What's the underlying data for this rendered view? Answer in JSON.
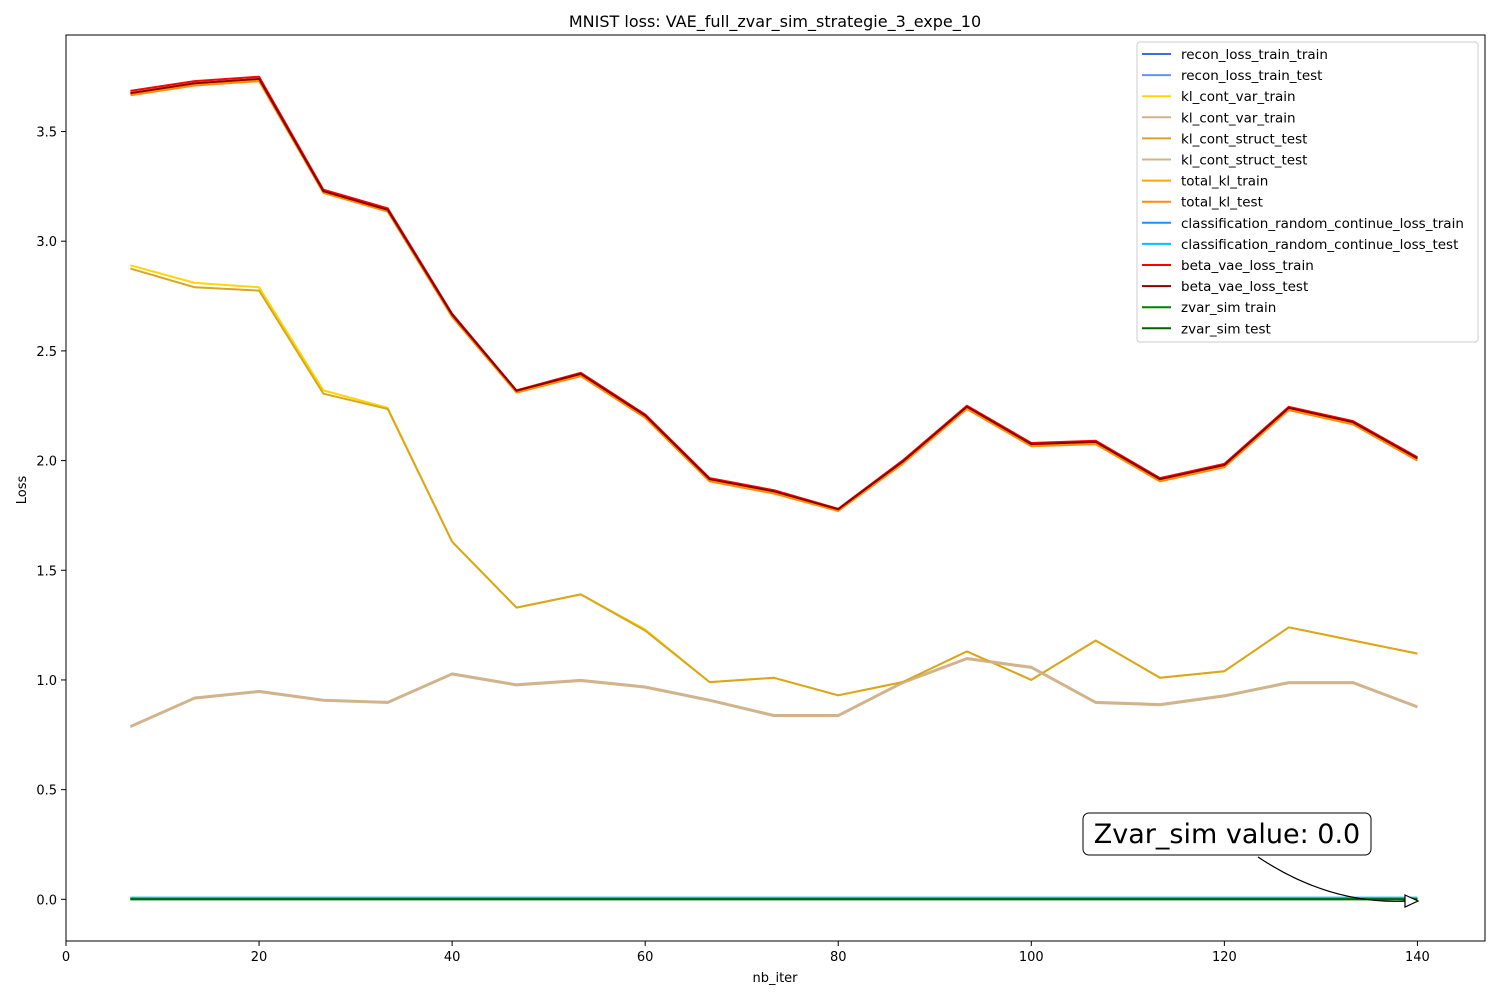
{
  "chart_data": {
    "type": "line",
    "title": "MNIST loss: VAE_full_zvar_sim_strategie_3_expe_10",
    "xlabel": "nb_iter",
    "ylabel": "Loss",
    "xlim": [
      0,
      147
    ],
    "ylim": [
      -0.19,
      3.94
    ],
    "xticks": [
      "0",
      "20",
      "40",
      "60",
      "80",
      "100",
      "120",
      "140"
    ],
    "yticks": [
      "0.0",
      "0.5",
      "1.0",
      "1.5",
      "2.0",
      "2.5",
      "3.0",
      "3.5"
    ],
    "legend_position": "top-right",
    "x": [
      6.67,
      13.33,
      20,
      26.67,
      33.33,
      40,
      46.67,
      53.33,
      60,
      66.67,
      73.33,
      80,
      86.67,
      93.33,
      100,
      106.67,
      113.33,
      120,
      126.67,
      133.33,
      140
    ],
    "series": [
      {
        "name": "recon_loss_train_train",
        "color": "#4169e1",
        "values": [
          0.005,
          0.005,
          0.005,
          0.005,
          0.005,
          0.005,
          0.005,
          0.005,
          0.005,
          0.005,
          0.005,
          0.005,
          0.005,
          0.005,
          0.005,
          0.005,
          0.005,
          0.005,
          0.005,
          0.005,
          0.005
        ]
      },
      {
        "name": "recon_loss_train_test",
        "color": "#6495ed",
        "values": [
          0.006,
          0.006,
          0.006,
          0.006,
          0.006,
          0.006,
          0.006,
          0.006,
          0.006,
          0.006,
          0.006,
          0.006,
          0.006,
          0.006,
          0.006,
          0.006,
          0.006,
          0.006,
          0.006,
          0.006,
          0.006
        ]
      },
      {
        "name": "kl_cont_var_train",
        "color": "#ffd700",
        "values": [
          2.89,
          2.81,
          2.79,
          2.32,
          2.24,
          1.63,
          1.33,
          1.39,
          1.23,
          0.99,
          1.01,
          0.93,
          0.99,
          1.13,
          1.0,
          1.18,
          1.01,
          1.04,
          1.24,
          1.18,
          1.12
        ]
      },
      {
        "name": "kl_cont_var_train",
        "color": "#d2b48c",
        "values": [
          0.79,
          0.92,
          0.95,
          0.91,
          0.9,
          1.03,
          0.98,
          1.0,
          0.97,
          0.91,
          0.84,
          0.84,
          0.99,
          1.1,
          1.06,
          0.9,
          0.89,
          0.93,
          0.99,
          0.99,
          0.88
        ]
      },
      {
        "name": "kl_cont_struct_test",
        "color": "#daa520",
        "values": [
          2.875,
          2.79,
          2.775,
          2.305,
          2.235,
          1.63,
          1.33,
          1.39,
          1.225,
          0.99,
          1.01,
          0.93,
          0.99,
          1.13,
          1.0,
          1.18,
          1.01,
          1.04,
          1.24,
          1.18,
          1.12
        ]
      },
      {
        "name": "kl_cont_struct_test",
        "color": "#d2b48c",
        "values": [
          0.785,
          0.915,
          0.945,
          0.905,
          0.895,
          1.025,
          0.975,
          0.995,
          0.965,
          0.905,
          0.835,
          0.835,
          0.985,
          1.095,
          1.055,
          0.895,
          0.885,
          0.925,
          0.985,
          0.985,
          0.875
        ]
      },
      {
        "name": "total_kl_train",
        "color": "#ffa500",
        "values": [
          3.67,
          3.715,
          3.735,
          3.225,
          3.14,
          2.66,
          2.315,
          2.39,
          2.2,
          1.91,
          1.855,
          1.775,
          1.99,
          2.24,
          2.07,
          2.08,
          1.91,
          1.975,
          2.235,
          2.17,
          2.005
        ]
      },
      {
        "name": "total_kl_test",
        "color": "#ff8c00",
        "values": [
          3.665,
          3.71,
          3.73,
          3.22,
          3.135,
          2.655,
          2.31,
          2.385,
          2.195,
          1.905,
          1.85,
          1.77,
          1.985,
          2.235,
          2.065,
          2.075,
          1.905,
          1.97,
          2.23,
          2.165,
          2.0
        ]
      },
      {
        "name": "classification_random_continue_loss_train",
        "color": "#1e90ff",
        "values": [
          0.004,
          0.004,
          0.004,
          0.004,
          0.004,
          0.004,
          0.004,
          0.004,
          0.004,
          0.004,
          0.004,
          0.004,
          0.004,
          0.004,
          0.004,
          0.004,
          0.004,
          0.004,
          0.004,
          0.004,
          0.004
        ]
      },
      {
        "name": "classification_random_continue_loss_test",
        "color": "#00bfff",
        "values": [
          0.008,
          0.008,
          0.008,
          0.008,
          0.008,
          0.008,
          0.008,
          0.008,
          0.008,
          0.008,
          0.008,
          0.008,
          0.008,
          0.008,
          0.008,
          0.008,
          0.008,
          0.008,
          0.008,
          0.008,
          0.008
        ]
      },
      {
        "name": "beta_vae_loss_train",
        "color": "#ff0000",
        "values": [
          3.685,
          3.73,
          3.75,
          3.235,
          3.15,
          2.67,
          2.32,
          2.4,
          2.21,
          1.92,
          1.865,
          1.78,
          2.0,
          2.25,
          2.08,
          2.09,
          1.92,
          1.985,
          2.245,
          2.18,
          2.015
        ]
      },
      {
        "name": "beta_vae_loss_test",
        "color": "#8b0000",
        "values": [
          3.675,
          3.72,
          3.74,
          3.228,
          3.143,
          2.665,
          2.318,
          2.395,
          2.205,
          1.915,
          1.86,
          1.778,
          1.995,
          2.245,
          2.075,
          2.085,
          1.915,
          1.98,
          2.24,
          2.175,
          2.01
        ]
      },
      {
        "name": "zvar_sim train",
        "color": "#008000",
        "values": [
          0,
          0,
          0,
          0,
          0,
          0,
          0,
          0,
          0,
          0,
          0,
          0,
          0,
          0,
          0,
          0,
          0,
          0,
          0,
          0,
          0
        ]
      },
      {
        "name": "zvar_sim test",
        "color": "#006400",
        "values": [
          0,
          0,
          0,
          0,
          0,
          0,
          0,
          0,
          0,
          0,
          0,
          0,
          0,
          0,
          0,
          0,
          0,
          0,
          0,
          0,
          0
        ]
      }
    ],
    "annotation": {
      "text": "Zvar_sim value: 0.0",
      "x": 140,
      "y": 0.0
    }
  }
}
